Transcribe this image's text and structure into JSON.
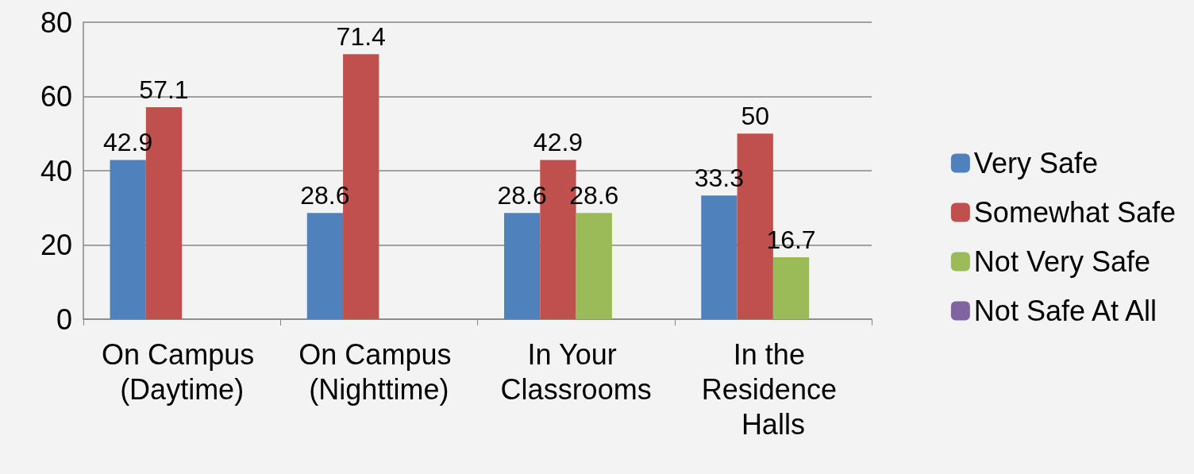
{
  "chart_data": {
    "type": "bar",
    "categories": [
      "On Campus (Daytime)",
      "On Campus (Nighttime)",
      "In Your Classrooms",
      "In the Residence Halls"
    ],
    "series": [
      {
        "name": "Very Safe",
        "color": "#4f81bd",
        "values": [
          42.9,
          28.6,
          28.6,
          33.3
        ]
      },
      {
        "name": "Somewhat Safe",
        "color": "#c0504d",
        "values": [
          57.1,
          71.4,
          42.9,
          50
        ]
      },
      {
        "name": "Not Very Safe",
        "color": "#9bbb59",
        "values": [
          null,
          null,
          28.6,
          16.7
        ]
      },
      {
        "name": "Not Safe At All",
        "color": "#8064a2",
        "values": [
          null,
          null,
          null,
          null
        ]
      }
    ],
    "ylim": [
      0,
      80
    ],
    "yticks": [
      0,
      20,
      40,
      60,
      80
    ],
    "grid": "y",
    "legend": "right",
    "data_labels": true
  }
}
